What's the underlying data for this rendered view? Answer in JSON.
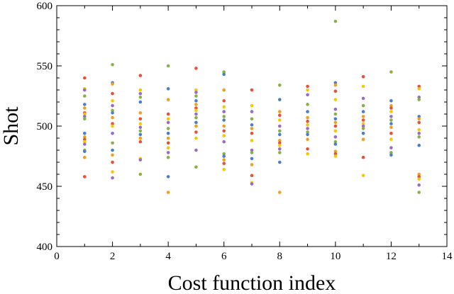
{
  "chart_data": {
    "type": "scatter",
    "title": "",
    "xlabel": "Cost function index",
    "ylabel": "Shot",
    "xlim": [
      0,
      14
    ],
    "ylim": [
      400,
      600
    ],
    "x_ticks": [
      0,
      2,
      4,
      6,
      8,
      10,
      12,
      14
    ],
    "y_ticks": [
      400,
      450,
      500,
      550,
      600
    ],
    "grid": false,
    "legend": "none",
    "palette": [
      "#e8503a",
      "#f0a020",
      "#4a7fc8",
      "#8ab04a",
      "#9a6cc0",
      "#f5c800"
    ],
    "series": [
      {
        "x": 1,
        "y": [
          540,
          531,
          530,
          525,
          518,
          515,
          511,
          510,
          508,
          506,
          494,
          491,
          489,
          487,
          485,
          480,
          479,
          474,
          458
        ]
      },
      {
        "x": 2,
        "y": [
          551,
          536,
          535,
          527,
          521,
          517,
          513,
          511,
          507,
          502,
          500,
          494,
          486,
          480,
          476,
          470,
          462,
          457
        ]
      },
      {
        "x": 3,
        "y": [
          542,
          530,
          527,
          524,
          520,
          511,
          506,
          502,
          499,
          496,
          493,
          490,
          487,
          473,
          472,
          460
        ]
      },
      {
        "x": 4,
        "y": [
          550,
          531,
          522,
          510,
          506,
          503,
          498,
          494,
          490,
          486,
          482,
          478,
          474,
          458,
          445
        ]
      },
      {
        "x": 5,
        "y": [
          548,
          530,
          528,
          525,
          521,
          518,
          515,
          513,
          510,
          507,
          503,
          500,
          495,
          490,
          480,
          466
        ]
      },
      {
        "x": 6,
        "y": [
          545,
          543,
          530,
          521,
          516,
          512,
          508,
          505,
          500,
          496,
          492,
          487,
          477,
          475,
          472,
          469,
          464
        ]
      },
      {
        "x": 7,
        "y": [
          530,
          517,
          512,
          506,
          501,
          498,
          494,
          488,
          480,
          478,
          473,
          468,
          459,
          453,
          452
        ]
      },
      {
        "x": 8,
        "y": [
          534,
          522,
          512,
          509,
          505,
          500,
          496,
          493,
          488,
          486,
          484,
          481,
          478,
          470,
          445
        ]
      },
      {
        "x": 9,
        "y": [
          533,
          530,
          526,
          518,
          512,
          507,
          504,
          501,
          498,
          495,
          493,
          489,
          481,
          477
        ]
      },
      {
        "x": 10,
        "y": [
          587,
          536,
          534,
          529,
          522,
          514,
          510,
          506,
          503,
          500,
          496,
          491,
          487,
          485,
          479,
          477,
          475
        ]
      },
      {
        "x": 11,
        "y": [
          541,
          533,
          523,
          517,
          512,
          508,
          505,
          502,
          500,
          498,
          494,
          489,
          474,
          459
        ]
      },
      {
        "x": 12,
        "y": [
          545,
          521,
          517,
          515,
          512,
          508,
          505,
          502,
          499,
          494,
          489,
          482,
          478,
          476
        ]
      },
      {
        "x": 13,
        "y": [
          533,
          531,
          524,
          522,
          508,
          506,
          503,
          497,
          494,
          491,
          484,
          460,
          458,
          456,
          451,
          445
        ]
      }
    ]
  }
}
